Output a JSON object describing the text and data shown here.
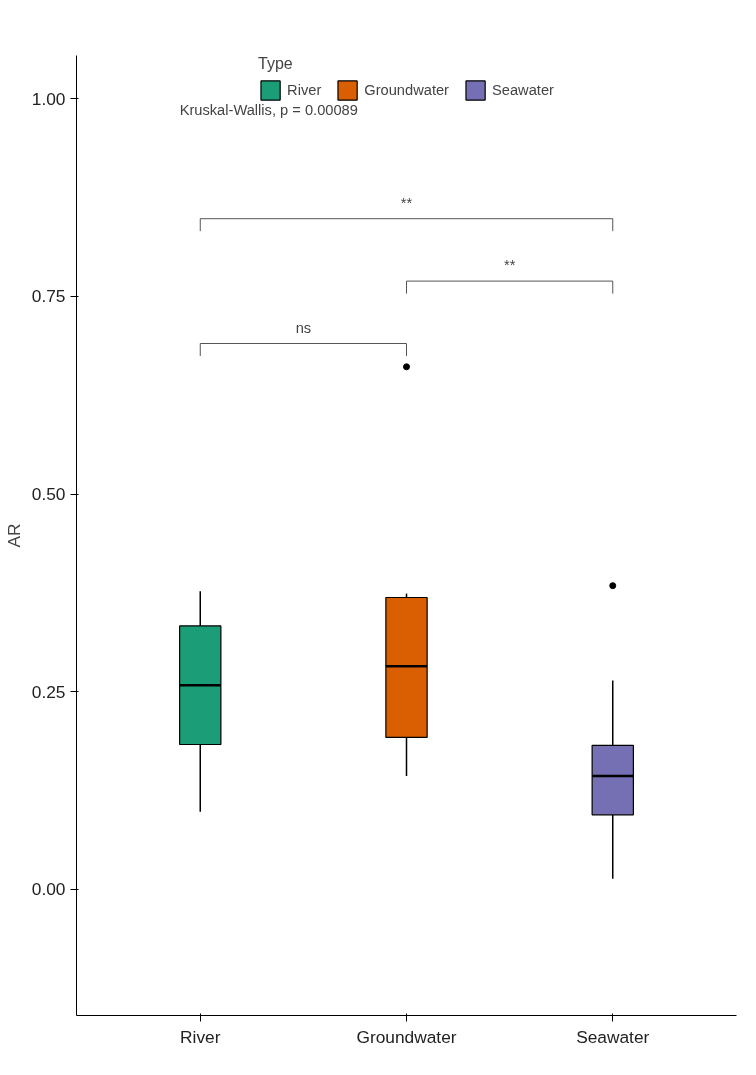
{
  "chart_data": {
    "type": "box",
    "ylabel": "AR",
    "legend_title": "Type",
    "legend": "top",
    "categories": [
      "River",
      "Groundwater",
      "Seawater"
    ],
    "series": [
      {
        "name": "River",
        "color": "#1b9e77",
        "boxes": [
          {
            "low": 0.098,
            "q1": 0.183,
            "median": 0.258,
            "q3": 0.333,
            "high": 0.377
          },
          null,
          null
        ]
      },
      {
        "name": "Groundwater",
        "color": "#d95f02",
        "boxes": [
          null,
          {
            "low": 0.143,
            "q1": 0.192,
            "median": 0.282,
            "q3": 0.369,
            "high": 0.374,
            "outliers": [
              0.661
            ]
          },
          null
        ]
      },
      {
        "name": "Seawater",
        "color": "#7570b3",
        "boxes": [
          null,
          null,
          {
            "low": 0.013,
            "q1": 0.094,
            "median": 0.143,
            "q3": 0.182,
            "high": 0.264,
            "outliers": [
              0.384
            ]
          }
        ]
      }
    ],
    "ylim": [
      -0.16,
      1.055
    ],
    "yticks": [
      {
        "value": 0,
        "label": "0.00"
      },
      {
        "value": 0.25,
        "label": "0.25"
      },
      {
        "value": 0.5,
        "label": "0.50"
      },
      {
        "value": 0.75,
        "label": "0.75"
      },
      {
        "value": 1,
        "label": "1.00"
      }
    ],
    "grid": false,
    "annotations": [
      "Kruskal-Wallis, p = 0.00089",
      "ns",
      "**",
      "**"
    ]
  }
}
